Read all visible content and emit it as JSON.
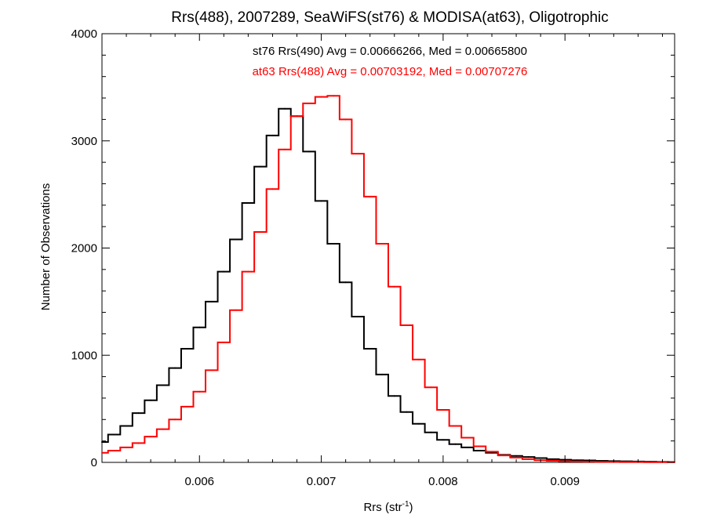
{
  "chart_data": {
    "type": "line",
    "title": "Rrs(488), 2007289, SeaWiFS(st76) & MODISA(at63), Oligotrophic",
    "xlabel": "Rrs (str",
    "xlabel_sup": "-1",
    "xlabel_close": ")",
    "ylabel": "Number of Observations",
    "xlim": [
      0.0052,
      0.0099
    ],
    "ylim": [
      0,
      4000
    ],
    "xticks": [
      0.006,
      0.007,
      0.008,
      0.009
    ],
    "xtick_labels": [
      "0.006",
      "0.007",
      "0.008",
      "0.009"
    ],
    "yticks": [
      0,
      1000,
      2000,
      3000,
      4000
    ],
    "ytick_labels": [
      "0",
      "1000",
      "2000",
      "3000",
      "4000"
    ],
    "grid": false,
    "annotations": [
      {
        "text": "st76 Rrs(490) Avg = 0.00666266, Med = 0.00665800",
        "color": "#000000"
      },
      {
        "text": "at63 Rrs(488) Avg = 0.00703192, Med = 0.00707276",
        "color": "#ff0000"
      }
    ],
    "series": [
      {
        "color": "#000000",
        "x": [
          0.0052,
          0.0053,
          0.0054,
          0.0055,
          0.0056,
          0.0057,
          0.0058,
          0.0059,
          0.006,
          0.0061,
          0.0062,
          0.0063,
          0.0064,
          0.0065,
          0.0066,
          0.0067,
          0.0068,
          0.0069,
          0.007,
          0.0071,
          0.0072,
          0.0073,
          0.0074,
          0.0075,
          0.0076,
          0.0077,
          0.0078,
          0.0079,
          0.008,
          0.0081,
          0.0082,
          0.0083,
          0.0084,
          0.0085,
          0.0086,
          0.0087,
          0.0088,
          0.0089,
          0.009,
          0.0091,
          0.0092,
          0.0093,
          0.0094,
          0.0095,
          0.0096,
          0.0097,
          0.0098,
          0.0099
        ],
        "y": [
          190,
          260,
          340,
          460,
          580,
          720,
          880,
          1060,
          1260,
          1500,
          1780,
          2080,
          2420,
          2760,
          3050,
          3300,
          3230,
          2900,
          2440,
          2040,
          1680,
          1360,
          1060,
          820,
          620,
          470,
          360,
          280,
          210,
          170,
          140,
          110,
          90,
          70,
          60,
          50,
          40,
          30,
          25,
          20,
          18,
          15,
          12,
          10,
          8,
          6,
          5,
          4
        ]
      },
      {
        "color": "#ff0000",
        "x": [
          0.0052,
          0.0053,
          0.0054,
          0.0055,
          0.0056,
          0.0057,
          0.0058,
          0.0059,
          0.006,
          0.0061,
          0.0062,
          0.0063,
          0.0064,
          0.0065,
          0.0066,
          0.0067,
          0.0068,
          0.0069,
          0.007,
          0.0071,
          0.0072,
          0.0073,
          0.0074,
          0.0075,
          0.0076,
          0.0077,
          0.0078,
          0.0079,
          0.008,
          0.0081,
          0.0082,
          0.0083,
          0.0084,
          0.0085,
          0.0086,
          0.0087,
          0.0088,
          0.0089,
          0.009,
          0.0091,
          0.0092,
          0.0093,
          0.0094,
          0.0095,
          0.0096,
          0.0097,
          0.0098,
          0.0099
        ],
        "y": [
          90,
          110,
          140,
          180,
          240,
          310,
          400,
          520,
          660,
          860,
          1120,
          1420,
          1780,
          2150,
          2550,
          2920,
          3230,
          3350,
          3410,
          3420,
          3200,
          2880,
          2480,
          2040,
          1640,
          1280,
          960,
          700,
          490,
          340,
          230,
          150,
          100,
          65,
          45,
          30,
          20,
          15,
          10,
          8,
          6,
          5,
          4,
          3,
          3,
          2,
          2,
          2
        ]
      }
    ]
  }
}
